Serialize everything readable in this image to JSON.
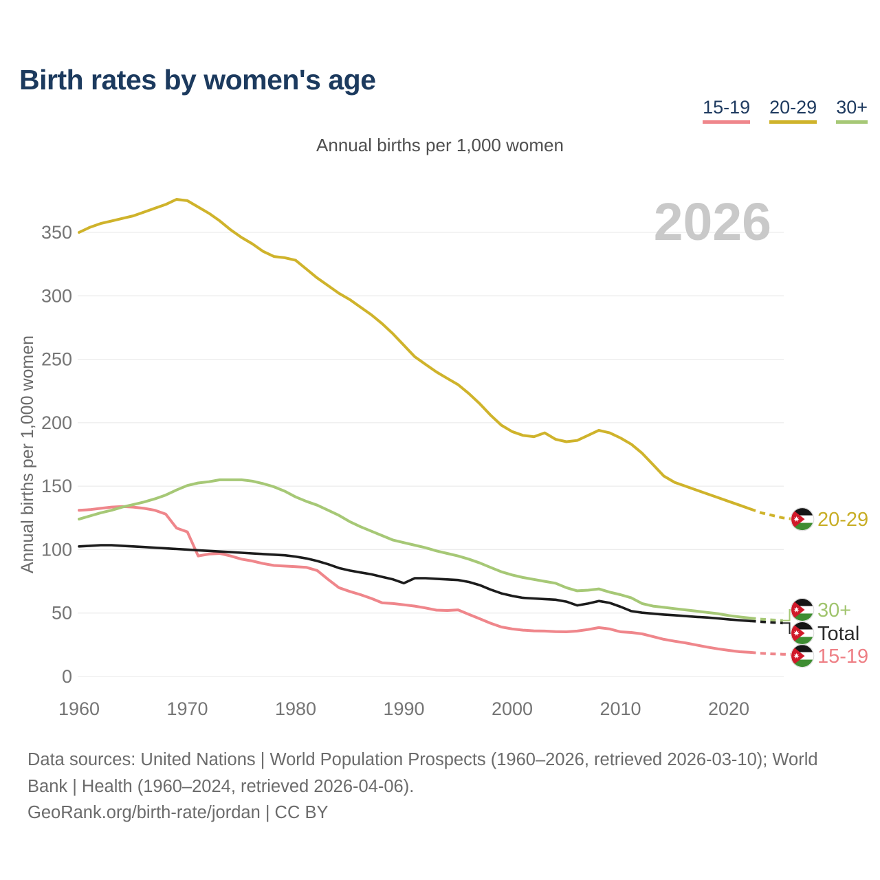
{
  "header": {
    "title": "Birth rates by women's age"
  },
  "legend": {
    "items": [
      {
        "label": "15-19",
        "color": "#ef868b"
      },
      {
        "label": "20-29",
        "color": "#cfb32b"
      },
      {
        "label": "30+",
        "color": "#a6c876"
      }
    ]
  },
  "subtitle": "Annual births per 1,000 women",
  "watermark": "2026",
  "footer": {
    "line1": "Data sources: United Nations | World Population Prospects (1960–2026, retrieved 2026-03-10); World",
    "line2": "Bank | Health (1960–2024, retrieved 2026-04-06).",
    "line3": "GeoRank.org/birth-rate/jordan | CC BY"
  },
  "chart_data": {
    "type": "line",
    "title": "Birth rates by women's age",
    "subtitle": "Annual births per 1,000 women",
    "xlabel": "",
    "ylabel": "Annual births per 1,000 women",
    "x_start": 1960,
    "x_step": 1,
    "xlim": [
      1960,
      2026
    ],
    "ylim": [
      0,
      385
    ],
    "x_ticks": [
      1960,
      1970,
      1980,
      1990,
      2000,
      2010,
      2020
    ],
    "y_ticks": [
      0,
      50,
      100,
      150,
      200,
      250,
      300,
      350
    ],
    "grid": "horizontal-only",
    "legend_position": "top-right",
    "projection_dashed_from_year": 2022,
    "flag": {
      "name": "jordan-flag",
      "colors": {
        "black": "#161616",
        "white": "#ffffff",
        "green": "#3e8d32",
        "red": "#d11a2a"
      }
    },
    "series": [
      {
        "id": "20-29",
        "label": "20-29",
        "color": "#cfb32b",
        "label_color": "#c8ae27",
        "values": [
          350,
          354,
          357,
          359,
          361,
          363,
          366,
          369,
          372,
          376,
          375,
          370,
          365,
          359,
          352,
          346,
          341,
          335,
          331,
          330,
          328,
          321,
          314,
          308,
          302,
          297,
          291,
          285,
          278,
          270,
          261,
          252,
          246,
          240,
          235,
          230,
          223,
          215,
          206,
          198,
          193,
          190,
          189,
          192,
          187,
          185,
          186,
          190,
          194,
          192,
          188,
          183,
          176,
          167,
          158,
          153,
          150,
          147,
          144,
          141,
          138,
          135,
          132,
          129,
          127,
          125,
          124
        ]
      },
      {
        "id": "15-19",
        "label": "15-19",
        "color": "#ef868b",
        "label_color": "#ee7f85",
        "values": [
          131,
          131.5,
          132.5,
          133.5,
          134,
          133.5,
          132.5,
          131,
          128,
          117,
          114,
          95,
          96.5,
          97,
          95,
          92.5,
          91,
          89,
          87.5,
          87,
          86.5,
          86,
          83.5,
          76.5,
          70,
          67,
          64.5,
          61.5,
          58,
          57.5,
          56.5,
          55.5,
          54,
          52.3,
          52,
          52.5,
          49,
          45.5,
          42,
          39,
          37.5,
          36.5,
          36,
          35.8,
          35.4,
          35.2,
          35.8,
          37,
          38.5,
          37.5,
          35.2,
          34.7,
          33.6,
          31.5,
          29.3,
          27.8,
          26.5,
          24.8,
          23.2,
          21.8,
          20.6,
          19.5,
          19,
          18.3,
          17.8,
          17.5,
          17.3
        ]
      },
      {
        "id": "30+",
        "label": "30+",
        "color": "#a6c876",
        "label_color": "#a0c46d",
        "values": [
          124,
          126.5,
          129,
          131,
          133.5,
          135.5,
          137.5,
          140,
          143,
          147,
          150.5,
          152.5,
          153.5,
          155,
          155,
          155,
          154,
          152,
          149.5,
          146,
          141.5,
          138,
          135,
          131,
          127,
          122,
          118,
          114.5,
          111,
          107.5,
          105.5,
          103.5,
          101.5,
          99,
          97,
          95,
          92.5,
          89.5,
          86,
          82.5,
          80,
          78,
          76.5,
          75,
          73.5,
          70,
          67.5,
          68,
          69,
          66.5,
          64.5,
          62,
          57.5,
          55.5,
          54.5,
          53.5,
          52.5,
          51.5,
          50.5,
          49.5,
          48,
          47,
          46,
          45.2,
          44.6,
          44.1,
          43.8
        ]
      },
      {
        "id": "Total",
        "label": "Total",
        "color": "#1c1c1c",
        "label_color": "#2b2b2b",
        "values": [
          102.5,
          103,
          103.5,
          103.5,
          103,
          102.5,
          102,
          101.5,
          101,
          100.5,
          100,
          99.5,
          99,
          98.5,
          98,
          97.5,
          97,
          96.5,
          96,
          95.5,
          94.5,
          93,
          91,
          88.5,
          85.5,
          83.5,
          82,
          80.5,
          78.5,
          76.5,
          73.5,
          77.5,
          77.5,
          77,
          76.5,
          76,
          74.5,
          72,
          68.5,
          65.5,
          63.5,
          62,
          61.5,
          61,
          60.5,
          59,
          56,
          57.5,
          59.5,
          58,
          55,
          51.5,
          50.3,
          49.5,
          48.8,
          48.3,
          47.6,
          47,
          46.5,
          45.8,
          45,
          44.3,
          43.7,
          43.1,
          42.6,
          42.1,
          41.8
        ]
      }
    ]
  }
}
